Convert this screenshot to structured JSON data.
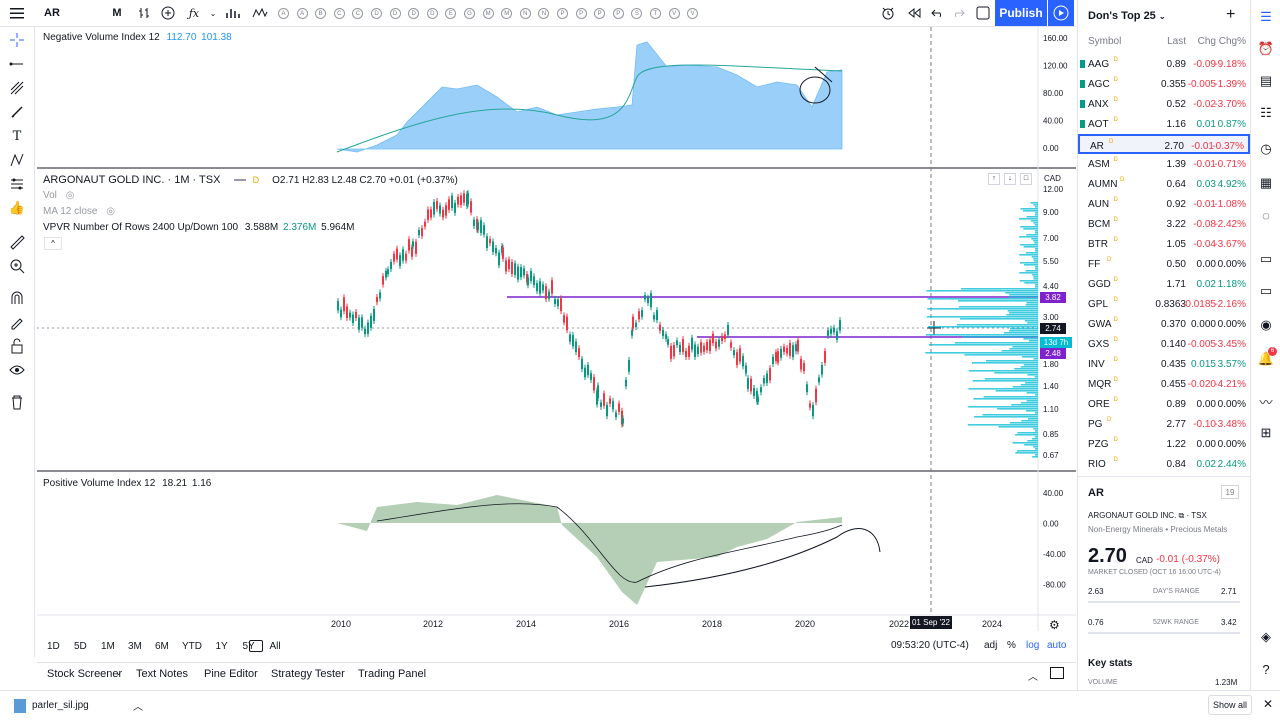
{
  "toolbar": {
    "symbol": "AR",
    "interval": "M",
    "publish": "Publish"
  },
  "watchlist": {
    "title": "Don's Top 25",
    "columns": [
      "Symbol",
      "Last",
      "Chg",
      "Chg%"
    ],
    "rows": [
      {
        "s": "AAG",
        "l": "0.89",
        "c": "-0.09",
        "p": "-9.18%",
        "dir": "red"
      },
      {
        "s": "AGC",
        "l": "0.355",
        "c": "-0.005",
        "p": "-1.39%",
        "dir": "red"
      },
      {
        "s": "ANX",
        "l": "0.52",
        "c": "-0.02",
        "p": "-3.70%",
        "dir": "red"
      },
      {
        "s": "AOT",
        "l": "1.16",
        "c": "0.01",
        "p": "0.87%",
        "dir": "green"
      },
      {
        "s": "AR",
        "l": "2.70",
        "c": "-0.01",
        "p": "-0.37%",
        "dir": "red"
      },
      {
        "s": "ASM",
        "l": "1.39",
        "c": "-0.01",
        "p": "-0.71%",
        "dir": "red"
      },
      {
        "s": "AUMN",
        "l": "0.64",
        "c": "0.03",
        "p": "4.92%",
        "dir": "green"
      },
      {
        "s": "AUN",
        "l": "0.92",
        "c": "-0.01",
        "p": "-1.08%",
        "dir": "red"
      },
      {
        "s": "BCM",
        "l": "3.22",
        "c": "-0.08",
        "p": "-2.42%",
        "dir": "red"
      },
      {
        "s": "BTR",
        "l": "1.05",
        "c": "-0.04",
        "p": "-3.67%",
        "dir": "red"
      },
      {
        "s": "FF",
        "l": "0.50",
        "c": "0.00",
        "p": "0.00%",
        "dir": "gray"
      },
      {
        "s": "GGD",
        "l": "1.71",
        "c": "0.02",
        "p": "1.18%",
        "dir": "green"
      },
      {
        "s": "GPL",
        "l": "0.8363",
        "c": "-0.0185",
        "p": "-2.16%",
        "dir": "red"
      },
      {
        "s": "GWA",
        "l": "0.370",
        "c": "0.000",
        "p": "0.00%",
        "dir": "gray"
      },
      {
        "s": "GXS",
        "l": "0.140",
        "c": "-0.005",
        "p": "-3.45%",
        "dir": "red"
      },
      {
        "s": "INV",
        "l": "0.435",
        "c": "0.015",
        "p": "3.57%",
        "dir": "green"
      },
      {
        "s": "MQR",
        "l": "0.455",
        "c": "-0.020",
        "p": "-4.21%",
        "dir": "red"
      },
      {
        "s": "ORE",
        "l": "0.89",
        "c": "0.00",
        "p": "0.00%",
        "dir": "gray"
      },
      {
        "s": "PG",
        "l": "2.77",
        "c": "-0.10",
        "p": "-3.48%",
        "dir": "red"
      },
      {
        "s": "PZG",
        "l": "1.22",
        "c": "0.00",
        "p": "0.00%",
        "dir": "gray"
      },
      {
        "s": "RIO",
        "l": "0.84",
        "c": "0.02",
        "p": "2.44%",
        "dir": "green"
      }
    ]
  },
  "details": {
    "symbol": "AR",
    "badge": "19",
    "name": "ARGONAUT GOLD INC.",
    "exchange": "TSX",
    "sector": "Non-Energy Minerals • Precious Metals",
    "price": "2.70",
    "currency": "CAD",
    "change": "-0.01 (-0.37%)",
    "status": "MARKET CLOSED",
    "time": "(OCT 16 16:00 UTC-4)",
    "day_low": "2.63",
    "day_label": "DAY'S RANGE",
    "day_high": "2.71",
    "wk_low": "0.76",
    "wk_label": "52WK RANGE",
    "wk_high": "3.42",
    "key_stats": "Key stats",
    "volume_label": "VOLUME",
    "volume": "1.23M"
  },
  "legends": {
    "nvi_title": "Negative Volume Index 12",
    "nvi_v1": "112.70",
    "nvi_v2": "101.38",
    "main_title": "ARGONAUT GOLD INC. · 1M · TSX",
    "ohlc": "O2.71 H2.83 L2.48 C2.70 +0.01 (+0.37%)",
    "vol": "Vol",
    "ma": "MA 12 close",
    "vpvr": "VPVR Number Of Rows 2400 Up/Down 100",
    "vpvr_v1": "3.588M",
    "vpvr_v2": "2.376M",
    "vpvr_v3": "5.964M",
    "pvi_title": "Positive Volume Index 12",
    "pvi_v1": "18.21",
    "pvi_v2": "1.16",
    "currency": "CAD",
    "d_badge": "D"
  },
  "axes": {
    "nvi_ticks": [
      "160.00",
      "120.00",
      "80.00",
      "40.00",
      "0.00"
    ],
    "price_ticks": [
      "12.00",
      "9.00",
      "7.00",
      "5.50",
      "4.40",
      "3.00",
      "1.80",
      "1.40",
      "1.10",
      "0.85",
      "0.67"
    ],
    "pvi_ticks": [
      "40.00",
      "0.00",
      "-40.00",
      "-80.00"
    ],
    "years": [
      "2010",
      "2012",
      "2014",
      "2016",
      "2018",
      "2020",
      "2022",
      "2024"
    ],
    "crosshair_date": "01 Sep '22",
    "tag_high": "3.82",
    "tag_last": "2.74",
    "tag_time": "13d 7h",
    "tag_low": "2.48"
  },
  "ranges": [
    "1D",
    "5D",
    "1M",
    "3M",
    "6M",
    "YTD",
    "1Y",
    "5Y",
    "All"
  ],
  "clock": "09:53:20 (UTC-4)",
  "scale_opts": [
    "adj",
    "%",
    "log",
    "auto"
  ],
  "bottom_tabs": [
    "Stock Screener",
    "Text Notes",
    "Pine Editor",
    "Strategy Tester",
    "Trading Panel"
  ],
  "download": {
    "file": "parler_sil.jpg",
    "show_all": "Show all"
  },
  "colors": {
    "accent": "#2962ff",
    "up": "#089981",
    "down": "#f23645",
    "purple": "#7e22ce"
  }
}
